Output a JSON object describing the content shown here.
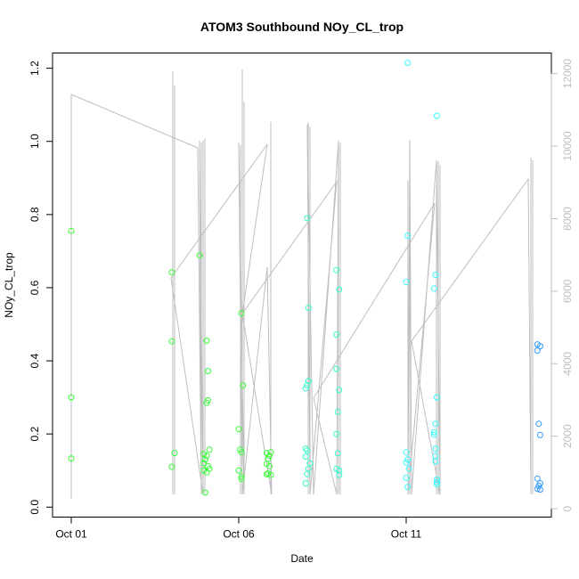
{
  "chart_data": {
    "type": "scatter",
    "title": "ATOM3 Southbound NOy_CL_trop",
    "xlabel": "Date",
    "ylabel": "NOy_CL_trop",
    "x_type": "date",
    "xlim": [
      "2017-10-01",
      "2017-10-15"
    ],
    "ylim": [
      0,
      1.2
    ],
    "x_ticks": [
      {
        "date": "2017-10-01",
        "label": "Oct 01"
      },
      {
        "date": "2017-10-06",
        "label": "Oct 06"
      },
      {
        "date": "2017-10-11",
        "label": "Oct 11"
      }
    ],
    "y_ticks": [
      "0.0",
      "0.2",
      "0.4",
      "0.6",
      "0.8",
      "1.0",
      "1.2"
    ],
    "y2_ticks": [
      "0",
      "2000",
      "4000",
      "6000",
      "8000",
      "10000",
      "12000"
    ],
    "y2lim": [
      0,
      12000
    ],
    "grid": false,
    "legend": "none",
    "colors": {
      "altitude_line": "#bebebe",
      "point_green": "#33ff33",
      "point_aqua": "#33ffcc",
      "point_cyan": "#33ffff",
      "point_blue": "#3399ff"
    },
    "series": [
      {
        "values": [
          {
            "date": "2017-10-01 00:00",
            "y": 0.755,
            "color": "#33ff33"
          },
          {
            "date": "2017-10-01 00:00",
            "y": 0.3,
            "color": "#33ff33"
          },
          {
            "date": "2017-10-01 00:00",
            "y": 0.133,
            "color": "#33ff33"
          },
          {
            "date": "2017-10-04 00:00",
            "y": 0.642,
            "color": "#33ff33"
          },
          {
            "date": "2017-10-04 00:00",
            "y": 0.453,
            "color": "#33ff33"
          },
          {
            "date": "2017-10-04 02:00",
            "y": 0.148,
            "color": "#33ff33"
          },
          {
            "date": "2017-10-04 00:00",
            "y": 0.11,
            "color": "#33ff33"
          },
          {
            "date": "2017-10-04 20:00",
            "y": 0.688,
            "color": "#33ff33"
          },
          {
            "date": "2017-10-05 01:00",
            "y": 0.455,
            "color": "#33ff33"
          },
          {
            "date": "2017-10-05 02:00",
            "y": 0.372,
            "color": "#33ff33"
          },
          {
            "date": "2017-10-05 02:00",
            "y": 0.292,
            "color": "#33ff33"
          },
          {
            "date": "2017-10-05 01:00",
            "y": 0.285,
            "color": "#33ff33"
          },
          {
            "date": "2017-10-05 03:00",
            "y": 0.157,
            "color": "#33ff33"
          },
          {
            "date": "2017-10-04 23:00",
            "y": 0.145,
            "color": "#33ff33"
          },
          {
            "date": "2017-10-05 01:00",
            "y": 0.14,
            "color": "#33ff33"
          },
          {
            "date": "2017-10-05 00:00",
            "y": 0.13,
            "color": "#33ff33"
          },
          {
            "date": "2017-10-04 23:00",
            "y": 0.12,
            "color": "#33ff33"
          },
          {
            "date": "2017-10-05 02:00",
            "y": 0.112,
            "color": "#33ff33"
          },
          {
            "date": "2017-10-05 03:00",
            "y": 0.105,
            "color": "#33ff33"
          },
          {
            "date": "2017-10-04 23:00",
            "y": 0.1,
            "color": "#33ff33"
          },
          {
            "date": "2017-10-05 01:00",
            "y": 0.095,
            "color": "#33ff33"
          },
          {
            "date": "2017-10-05 00:00",
            "y": 0.04,
            "color": "#33ff33"
          },
          {
            "date": "2017-10-06 02:00",
            "y": 0.53,
            "color": "#33ff33"
          },
          {
            "date": "2017-10-06 03:00",
            "y": 0.333,
            "color": "#33ff33"
          },
          {
            "date": "2017-10-06 00:00",
            "y": 0.213,
            "color": "#33ff33"
          },
          {
            "date": "2017-10-06 01:00",
            "y": 0.157,
            "color": "#33ff33"
          },
          {
            "date": "2017-10-06 02:00",
            "y": 0.15,
            "color": "#33ff33"
          },
          {
            "date": "2017-10-06 00:00",
            "y": 0.1,
            "color": "#33ff33"
          },
          {
            "date": "2017-10-06 02:00",
            "y": 0.083,
            "color": "#33ff33"
          },
          {
            "date": "2017-10-06 02:00",
            "y": 0.077,
            "color": "#33ff33"
          },
          {
            "date": "2017-10-06 20:00",
            "y": 0.148,
            "color": "#33ff33"
          },
          {
            "date": "2017-10-06 23:00",
            "y": 0.15,
            "color": "#33ff33"
          },
          {
            "date": "2017-10-06 22:00",
            "y": 0.14,
            "color": "#33ff33"
          },
          {
            "date": "2017-10-06 21:00",
            "y": 0.132,
            "color": "#33ff33"
          },
          {
            "date": "2017-10-06 20:00",
            "y": 0.118,
            "color": "#33ff33"
          },
          {
            "date": "2017-10-06 22:00",
            "y": 0.112,
            "color": "#33ff33"
          },
          {
            "date": "2017-10-06 21:00",
            "y": 0.092,
            "color": "#33ff33"
          },
          {
            "date": "2017-10-06 23:00",
            "y": 0.088,
            "color": "#33ff33"
          },
          {
            "date": "2017-10-06 20:00",
            "y": 0.09,
            "color": "#33ff33"
          },
          {
            "date": "2017-10-08 01:00",
            "y": 0.79,
            "color": "#33ffcc"
          },
          {
            "date": "2017-10-08 02:00",
            "y": 0.545,
            "color": "#33ffcc"
          },
          {
            "date": "2017-10-08 02:00",
            "y": 0.345,
            "color": "#33ffcc"
          },
          {
            "date": "2017-10-08 01:00",
            "y": 0.333,
            "color": "#33ffcc"
          },
          {
            "date": "2017-10-08 00:00",
            "y": 0.325,
            "color": "#33ffcc"
          },
          {
            "date": "2017-10-08 00:00",
            "y": 0.16,
            "color": "#33ffcc"
          },
          {
            "date": "2017-10-08 01:00",
            "y": 0.155,
            "color": "#33ffcc"
          },
          {
            "date": "2017-10-08 00:00",
            "y": 0.138,
            "color": "#33ffcc"
          },
          {
            "date": "2017-10-08 03:00",
            "y": 0.12,
            "color": "#33ffcc"
          },
          {
            "date": "2017-10-08 02:00",
            "y": 0.105,
            "color": "#33ffcc"
          },
          {
            "date": "2017-10-08 01:00",
            "y": 0.09,
            "color": "#33ffcc"
          },
          {
            "date": "2017-10-08 00:00",
            "y": 0.065,
            "color": "#33ffcc"
          },
          {
            "date": "2017-10-08 22:00",
            "y": 0.648,
            "color": "#33ffcc"
          },
          {
            "date": "2017-10-09 00:00",
            "y": 0.595,
            "color": "#33ffcc"
          },
          {
            "date": "2017-10-08 22:00",
            "y": 0.472,
            "color": "#33ffcc"
          },
          {
            "date": "2017-10-08 22:00",
            "y": 0.378,
            "color": "#33ffcc"
          },
          {
            "date": "2017-10-09 00:00",
            "y": 0.32,
            "color": "#33ffcc"
          },
          {
            "date": "2017-10-08 23:00",
            "y": 0.26,
            "color": "#33ffcc"
          },
          {
            "date": "2017-10-08 22:00",
            "y": 0.2,
            "color": "#33ffcc"
          },
          {
            "date": "2017-10-08 23:00",
            "y": 0.147,
            "color": "#33ffcc"
          },
          {
            "date": "2017-10-08 22:00",
            "y": 0.105,
            "color": "#33ffcc"
          },
          {
            "date": "2017-10-09 00:00",
            "y": 0.1,
            "color": "#33ffcc"
          },
          {
            "date": "2017-10-09 00:00",
            "y": 0.088,
            "color": "#33ffcc"
          },
          {
            "date": "2017-10-11 01:00",
            "y": 1.215,
            "color": "#33ffff"
          },
          {
            "date": "2017-10-11 01:00",
            "y": 0.742,
            "color": "#33ffff"
          },
          {
            "date": "2017-10-11 00:00",
            "y": 0.615,
            "color": "#33ffff"
          },
          {
            "date": "2017-10-11 00:00",
            "y": 0.15,
            "color": "#33ffff"
          },
          {
            "date": "2017-10-11 01:00",
            "y": 0.13,
            "color": "#33ffff"
          },
          {
            "date": "2017-10-11 00:00",
            "y": 0.122,
            "color": "#33ffff"
          },
          {
            "date": "2017-10-11 02:00",
            "y": 0.105,
            "color": "#33ffff"
          },
          {
            "date": "2017-10-11 00:00",
            "y": 0.08,
            "color": "#33ffff"
          },
          {
            "date": "2017-10-11 01:00",
            "y": 0.055,
            "color": "#33ffff"
          },
          {
            "date": "2017-10-11 22:00",
            "y": 1.07,
            "color": "#33ffff"
          },
          {
            "date": "2017-10-11 21:00",
            "y": 0.635,
            "color": "#33ffff"
          },
          {
            "date": "2017-10-11 20:00",
            "y": 0.598,
            "color": "#33ffff"
          },
          {
            "date": "2017-10-11 22:00",
            "y": 0.3,
            "color": "#33ffff"
          },
          {
            "date": "2017-10-11 21:00",
            "y": 0.228,
            "color": "#33ffff"
          },
          {
            "date": "2017-10-11 20:00",
            "y": 0.205,
            "color": "#33ffff"
          },
          {
            "date": "2017-10-11 20:00",
            "y": 0.198,
            "color": "#33ffff"
          },
          {
            "date": "2017-10-11 21:00",
            "y": 0.16,
            "color": "#33ffff"
          },
          {
            "date": "2017-10-11 21:00",
            "y": 0.14,
            "color": "#33ffff"
          },
          {
            "date": "2017-10-11 21:00",
            "y": 0.125,
            "color": "#33ffff"
          },
          {
            "date": "2017-10-11 22:00",
            "y": 0.075,
            "color": "#33ffff"
          },
          {
            "date": "2017-10-11 22:00",
            "y": 0.068,
            "color": "#33ffff"
          },
          {
            "date": "2017-10-11 22:00",
            "y": 0.062,
            "color": "#33ffff"
          },
          {
            "date": "2017-10-14 22:00",
            "y": 0.445,
            "color": "#3399ff"
          },
          {
            "date": "2017-10-15 00:00",
            "y": 0.44,
            "color": "#3399ff"
          },
          {
            "date": "2017-10-14 22:00",
            "y": 0.428,
            "color": "#3399ff"
          },
          {
            "date": "2017-10-14 23:00",
            "y": 0.228,
            "color": "#3399ff"
          },
          {
            "date": "2017-10-15 00:00",
            "y": 0.197,
            "color": "#3399ff"
          },
          {
            "date": "2017-10-14 22:00",
            "y": 0.078,
            "color": "#3399ff"
          },
          {
            "date": "2017-10-15 00:00",
            "y": 0.065,
            "color": "#3399ff"
          },
          {
            "date": "2017-10-14 23:00",
            "y": 0.058,
            "color": "#3399ff"
          },
          {
            "date": "2017-10-14 22:00",
            "y": 0.05,
            "color": "#3399ff"
          },
          {
            "date": "2017-10-15 00:00",
            "y": 0.048,
            "color": "#3399ff"
          }
        ]
      }
    ]
  }
}
